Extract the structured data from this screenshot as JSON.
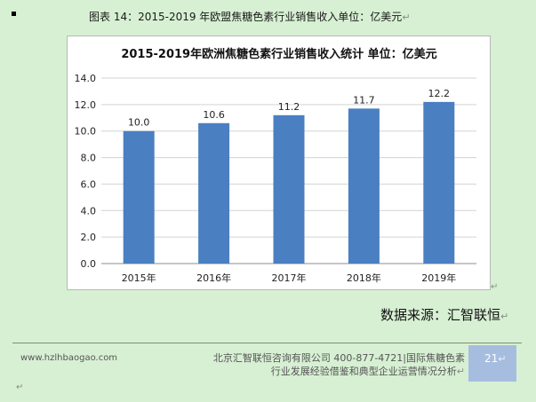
{
  "page": {
    "caption": "图表 14：2015-2019 年欧盟焦糖色素行业销售收入单位：亿美元",
    "caption_mark": "↵",
    "source": "数据来源：汇智联恒",
    "source_mark": "↵",
    "frame_mark": "↵",
    "bottom_mark": "↵"
  },
  "footer": {
    "website": "www.hzlhbaogao.com",
    "company_line1": "北京汇智联恒咨询有限公司  400-877-4721|国际焦糖色素",
    "company_line2": "行业发展经验借鉴和典型企业运营情况分析",
    "company_mark": "↵",
    "page_number": "21",
    "page_mark": "↵"
  },
  "chart_data": {
    "type": "bar",
    "title": "2015-2019年欧洲焦糖色素行业销售收入统计  单位：亿美元",
    "categories": [
      "2015年",
      "2016年",
      "2017年",
      "2018年",
      "2019年"
    ],
    "values": [
      10.0,
      10.6,
      11.2,
      11.7,
      12.2
    ],
    "value_labels": [
      "10.0",
      "10.6",
      "11.2",
      "11.7",
      "12.2"
    ],
    "yticks": [
      "0.0",
      "2.0",
      "4.0",
      "6.0",
      "8.0",
      "10.0",
      "12.0",
      "14.0"
    ],
    "ylim": [
      0,
      14
    ],
    "grid": true,
    "legend": "none",
    "bar_color": "#4a7fc1",
    "xlabel": "",
    "ylabel": ""
  }
}
